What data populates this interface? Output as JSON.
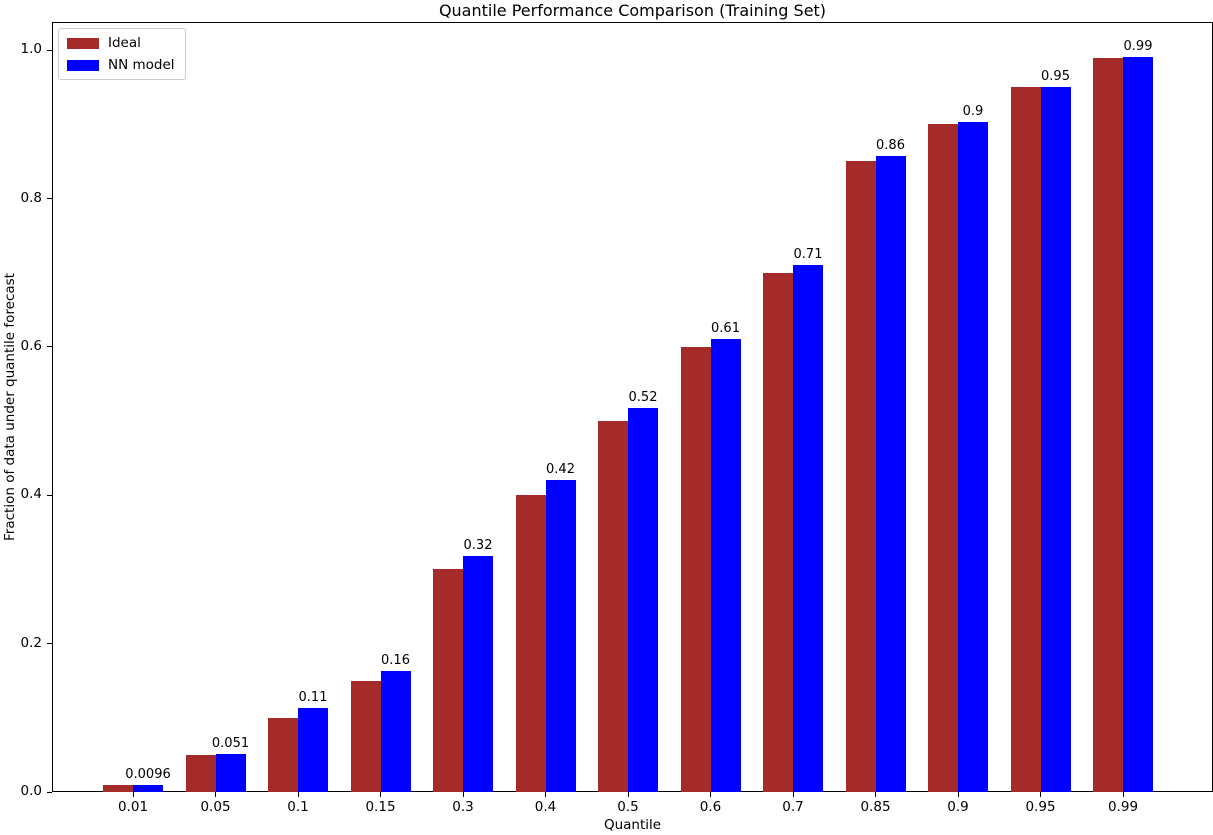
{
  "figure": {
    "title": "Quantile Performance Comparison (Training Set)",
    "xlabel": "Quantile",
    "ylabel": "Fraction of data under quantile forecast"
  },
  "legend": {
    "position": "upper-left",
    "entries": [
      {
        "label": "Ideal",
        "color": "#A52A2A"
      },
      {
        "label": "NN model",
        "color": "#0000FF"
      }
    ]
  },
  "axes": {
    "ytick_labels": [
      "0.0",
      "0.2",
      "0.4",
      "0.6",
      "0.8",
      "1.0"
    ],
    "ytick_values": [
      0.0,
      0.2,
      0.4,
      0.6,
      0.8,
      1.0
    ]
  },
  "chart_data": {
    "type": "bar",
    "title": "Quantile Performance Comparison (Training Set)",
    "xlabel": "Quantile",
    "ylabel": "Fraction of data under quantile forecast",
    "categories": [
      "0.01",
      "0.05",
      "0.1",
      "0.15",
      "0.3",
      "0.4",
      "0.5",
      "0.6",
      "0.7",
      "0.85",
      "0.9",
      "0.95",
      "0.99"
    ],
    "series": [
      {
        "name": "Ideal",
        "color": "#A52A2A",
        "values": [
          0.01,
          0.05,
          0.1,
          0.15,
          0.3,
          0.4,
          0.5,
          0.6,
          0.7,
          0.85,
          0.9,
          0.95,
          0.99
        ]
      },
      {
        "name": "NN model",
        "color": "#0000FF",
        "values": [
          0.0096,
          0.051,
          0.113,
          0.163,
          0.318,
          0.421,
          0.517,
          0.611,
          0.71,
          0.857,
          0.903,
          0.951,
          0.991
        ],
        "value_labels": [
          "0.0096",
          "0.051",
          "0.11",
          "0.16",
          "0.32",
          "0.42",
          "0.52",
          "0.61",
          "0.71",
          "0.86",
          "0.9",
          "0.95",
          "0.99"
        ]
      }
    ],
    "ylim": [
      0,
      1.038
    ],
    "grid": false,
    "legend_position": "upper left",
    "bar_value_labels_on": "NN model"
  }
}
